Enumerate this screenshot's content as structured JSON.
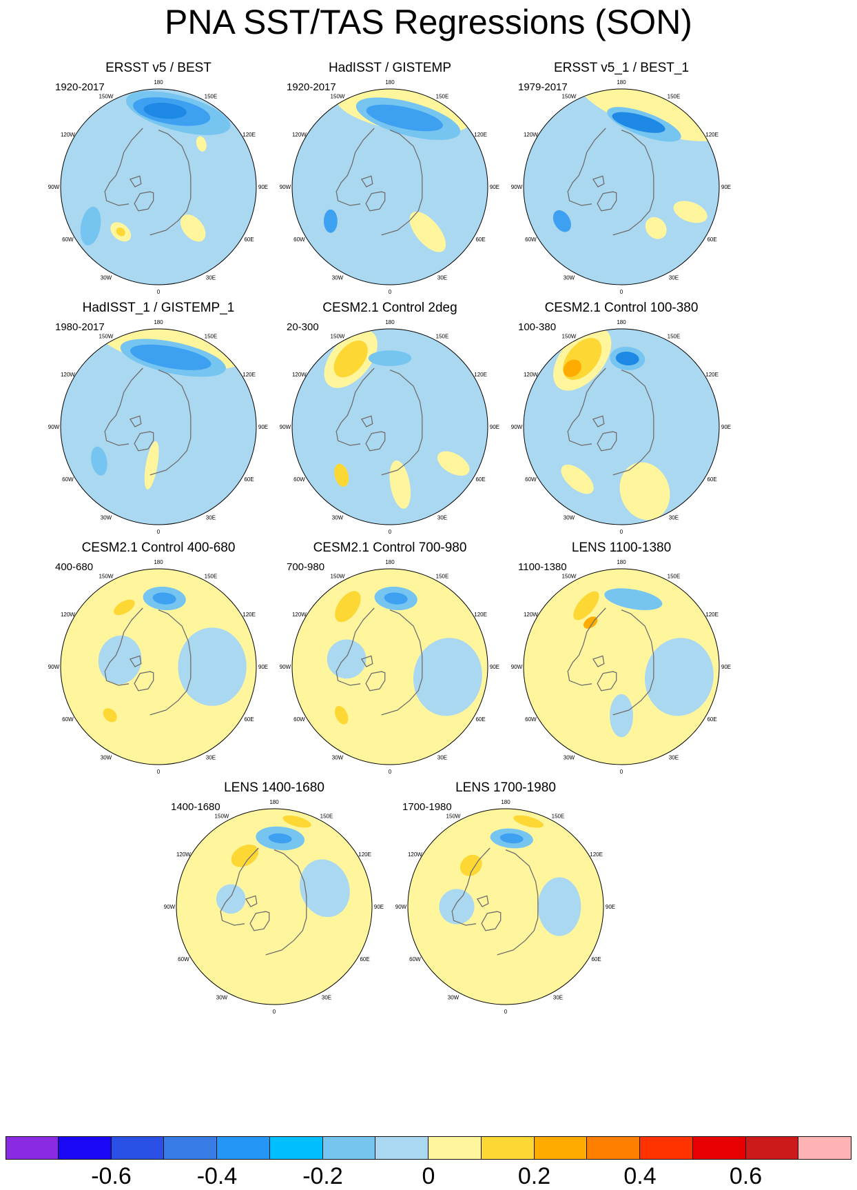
{
  "title": "PNA SST/TAS Regressions (SON)",
  "longitude_labels": [
    "180",
    "150E",
    "120E",
    "90E",
    "60E",
    "30E",
    "0",
    "30W",
    "60W",
    "90W",
    "120W",
    "150W"
  ],
  "palette": {
    "ocean_base": "#aad8f0",
    "land_outline": "#6e6e6e",
    "coast_white": "#ffffff"
  },
  "panels": [
    {
      "title": "ERSST v5 / BEST",
      "period": "1920-2017",
      "base": "#aad8f0",
      "blobs": [
        {
          "lon": 165,
          "r": 0.78,
          "sx": 0.55,
          "sy": 0.18,
          "rot": 0,
          "color": "#76c5f0"
        },
        {
          "lon": 170,
          "r": 0.78,
          "sx": 0.4,
          "sy": 0.13,
          "rot": 0,
          "color": "#3da0f0"
        },
        {
          "lon": 175,
          "r": 0.78,
          "sx": 0.22,
          "sy": 0.08,
          "rot": 0,
          "color": "#1e88e5"
        },
        {
          "lon": 135,
          "r": 0.62,
          "sx": 0.08,
          "sy": 0.05,
          "rot": 30,
          "color": "#fff59d"
        },
        {
          "lon": -40,
          "r": 0.6,
          "sx": 0.12,
          "sy": 0.08,
          "rot": 0,
          "color": "#fff59d"
        },
        {
          "lon": -40,
          "r": 0.6,
          "sx": 0.05,
          "sy": 0.04,
          "rot": 0,
          "color": "#fdd835"
        },
        {
          "lon": -60,
          "r": 0.8,
          "sx": 0.2,
          "sy": 0.1,
          "rot": 40,
          "color": "#76c5f0"
        },
        {
          "lon": 40,
          "r": 0.55,
          "sx": 0.1,
          "sy": 0.16,
          "rot": 0,
          "color": "#fff59d"
        }
      ]
    },
    {
      "title": "HadISST / GISTEMP",
      "period": "1920-2017",
      "base": "#aad8f0",
      "blobs": [
        {
          "lon": 170,
          "r": 0.8,
          "sx": 0.7,
          "sy": 0.22,
          "rot": 0,
          "color": "#fff59d"
        },
        {
          "lon": 165,
          "r": 0.72,
          "sx": 0.55,
          "sy": 0.17,
          "rot": 0,
          "color": "#76c5f0"
        },
        {
          "lon": 168,
          "r": 0.72,
          "sx": 0.4,
          "sy": 0.11,
          "rot": 0,
          "color": "#3da0f0"
        },
        {
          "lon": 40,
          "r": 0.6,
          "sx": 0.12,
          "sy": 0.25,
          "rot": 0,
          "color": "#fff59d"
        },
        {
          "lon": -60,
          "r": 0.7,
          "sx": 0.12,
          "sy": 0.07,
          "rot": 30,
          "color": "#3da0f0"
        }
      ]
    },
    {
      "title": "ERSST v5_1 / BEST_1",
      "period": "1979-2017",
      "base": "#aad8f0",
      "blobs": [
        {
          "lon": 160,
          "r": 0.88,
          "sx": 0.8,
          "sy": 0.25,
          "rot": 0,
          "color": "#fff59d"
        },
        {
          "lon": 160,
          "r": 0.68,
          "sx": 0.4,
          "sy": 0.12,
          "rot": 0,
          "color": "#76c5f0"
        },
        {
          "lon": 165,
          "r": 0.68,
          "sx": 0.28,
          "sy": 0.08,
          "rot": 0,
          "color": "#1e88e5"
        },
        {
          "lon": -60,
          "r": 0.7,
          "sx": 0.12,
          "sy": 0.08,
          "rot": 0,
          "color": "#3da0f0"
        },
        {
          "lon": 40,
          "r": 0.55,
          "sx": 0.1,
          "sy": 0.12,
          "rot": 0,
          "color": "#fff59d"
        },
        {
          "lon": 70,
          "r": 0.75,
          "sx": 0.1,
          "sy": 0.18,
          "rot": 0,
          "color": "#fff59d"
        }
      ]
    },
    {
      "title": "HadISST_1 / GISTEMP_1",
      "period": "1980-2017",
      "base": "#aad8f0",
      "blobs": [
        {
          "lon": 170,
          "r": 0.88,
          "sx": 0.8,
          "sy": 0.25,
          "rot": 0,
          "color": "#fff59d"
        },
        {
          "lon": 168,
          "r": 0.72,
          "sx": 0.55,
          "sy": 0.16,
          "rot": 0,
          "color": "#76c5f0"
        },
        {
          "lon": 170,
          "r": 0.72,
          "sx": 0.42,
          "sy": 0.11,
          "rot": 0,
          "color": "#3da0f0"
        },
        {
          "lon": -10,
          "r": 0.4,
          "sx": 0.06,
          "sy": 0.25,
          "rot": 0,
          "color": "#fff59d"
        },
        {
          "lon": -60,
          "r": 0.7,
          "sx": 0.15,
          "sy": 0.08,
          "rot": 20,
          "color": "#76c5f0"
        }
      ]
    },
    {
      "title": "CESM2.1 Control 2deg",
      "period": "20-300",
      "base": "#aad8f0",
      "blobs": [
        {
          "lon": -150,
          "r": 0.8,
          "sx": 0.35,
          "sy": 0.2,
          "rot": -20,
          "color": "#fff59d"
        },
        {
          "lon": -150,
          "r": 0.8,
          "sx": 0.22,
          "sy": 0.13,
          "rot": -20,
          "color": "#fdd835"
        },
        {
          "lon": 180,
          "r": 0.7,
          "sx": 0.22,
          "sy": 0.08,
          "rot": 0,
          "color": "#76c5f0"
        },
        {
          "lon": -45,
          "r": 0.7,
          "sx": 0.12,
          "sy": 0.07,
          "rot": 30,
          "color": "#fdd835"
        },
        {
          "lon": 10,
          "r": 0.6,
          "sx": 0.1,
          "sy": 0.25,
          "rot": 0,
          "color": "#fff59d"
        },
        {
          "lon": 60,
          "r": 0.75,
          "sx": 0.1,
          "sy": 0.18,
          "rot": 0,
          "color": "#fff59d"
        }
      ]
    },
    {
      "title": "CESM2.1 Control 100-380",
      "period": "100-380",
      "base": "#aad8f0",
      "blobs": [
        {
          "lon": -150,
          "r": 0.8,
          "sx": 0.38,
          "sy": 0.22,
          "rot": -20,
          "color": "#fff59d"
        },
        {
          "lon": -150,
          "r": 0.8,
          "sx": 0.25,
          "sy": 0.15,
          "rot": -20,
          "color": "#fdd835"
        },
        {
          "lon": -140,
          "r": 0.78,
          "sx": 0.1,
          "sy": 0.08,
          "rot": 0,
          "color": "#ffab00"
        },
        {
          "lon": 175,
          "r": 0.7,
          "sx": 0.18,
          "sy": 0.12,
          "rot": 0,
          "color": "#76c5f0"
        },
        {
          "lon": 175,
          "r": 0.7,
          "sx": 0.12,
          "sy": 0.07,
          "rot": 0,
          "color": "#1e88e5"
        },
        {
          "lon": 20,
          "r": 0.7,
          "sx": 0.25,
          "sy": 0.3,
          "rot": 0,
          "color": "#fff59d"
        },
        {
          "lon": -40,
          "r": 0.7,
          "sx": 0.2,
          "sy": 0.1,
          "rot": 0,
          "color": "#fff59d"
        }
      ]
    },
    {
      "title": "CESM2.1 Control 400-680",
      "period": "400-680",
      "base": "#fff59d",
      "blobs": [
        {
          "lon": 90,
          "r": 0.55,
          "sx": 0.4,
          "sy": 0.35,
          "rot": 0,
          "color": "#aad8f0"
        },
        {
          "lon": -100,
          "r": 0.4,
          "sx": 0.25,
          "sy": 0.22,
          "rot": 0,
          "color": "#aad8f0"
        },
        {
          "lon": 175,
          "r": 0.7,
          "sx": 0.22,
          "sy": 0.12,
          "rot": 0,
          "color": "#76c5f0"
        },
        {
          "lon": 175,
          "r": 0.7,
          "sx": 0.12,
          "sy": 0.06,
          "rot": 0,
          "color": "#3da0f0"
        },
        {
          "lon": -150,
          "r": 0.7,
          "sx": 0.12,
          "sy": 0.06,
          "rot": 0,
          "color": "#fdd835"
        },
        {
          "lon": -45,
          "r": 0.7,
          "sx": 0.08,
          "sy": 0.06,
          "rot": 0,
          "color": "#fdd835"
        }
      ]
    },
    {
      "title": "CESM2.1 Control 700-980",
      "period": "700-980",
      "base": "#fff59d",
      "blobs": [
        {
          "lon": 80,
          "r": 0.6,
          "sx": 0.4,
          "sy": 0.35,
          "rot": 0,
          "color": "#aad8f0"
        },
        {
          "lon": -100,
          "r": 0.45,
          "sx": 0.2,
          "sy": 0.2,
          "rot": 0,
          "color": "#aad8f0"
        },
        {
          "lon": 175,
          "r": 0.7,
          "sx": 0.22,
          "sy": 0.12,
          "rot": 0,
          "color": "#76c5f0"
        },
        {
          "lon": 175,
          "r": 0.7,
          "sx": 0.12,
          "sy": 0.06,
          "rot": 0,
          "color": "#3da0f0"
        },
        {
          "lon": -145,
          "r": 0.75,
          "sx": 0.18,
          "sy": 0.1,
          "rot": -20,
          "color": "#fdd835"
        },
        {
          "lon": -45,
          "r": 0.7,
          "sx": 0.1,
          "sy": 0.06,
          "rot": 20,
          "color": "#fdd835"
        }
      ]
    },
    {
      "title": "LENS 1100-1380",
      "period": "1100-1380",
      "base": "#fff59d",
      "blobs": [
        {
          "lon": 80,
          "r": 0.6,
          "sx": 0.4,
          "sy": 0.35,
          "rot": 0,
          "color": "#aad8f0"
        },
        {
          "lon": 0,
          "r": 0.5,
          "sx": 0.12,
          "sy": 0.22,
          "rot": 0,
          "color": "#aad8f0"
        },
        {
          "lon": 170,
          "r": 0.7,
          "sx": 0.3,
          "sy": 0.1,
          "rot": 0,
          "color": "#76c5f0"
        },
        {
          "lon": -150,
          "r": 0.72,
          "sx": 0.18,
          "sy": 0.08,
          "rot": -20,
          "color": "#fdd835"
        },
        {
          "lon": -145,
          "r": 0.55,
          "sx": 0.08,
          "sy": 0.05,
          "rot": 0,
          "color": "#ffab00"
        }
      ]
    },
    {
      "title": "LENS 1400-1680",
      "period": "1400-1680",
      "base": "#fff59d",
      "blobs": [
        {
          "lon": 110,
          "r": 0.55,
          "sx": 0.3,
          "sy": 0.25,
          "rot": 0,
          "color": "#aad8f0"
        },
        {
          "lon": -100,
          "r": 0.45,
          "sx": 0.15,
          "sy": 0.15,
          "rot": 0,
          "color": "#aad8f0"
        },
        {
          "lon": 175,
          "r": 0.7,
          "sx": 0.25,
          "sy": 0.12,
          "rot": 0,
          "color": "#76c5f0"
        },
        {
          "lon": 175,
          "r": 0.7,
          "sx": 0.12,
          "sy": 0.05,
          "rot": 0,
          "color": "#3da0f0"
        },
        {
          "lon": -150,
          "r": 0.6,
          "sx": 0.15,
          "sy": 0.1,
          "rot": 0,
          "color": "#fdd835"
        },
        {
          "lon": 165,
          "r": 0.9,
          "sx": 0.15,
          "sy": 0.05,
          "rot": 0,
          "color": "#fdd835"
        }
      ]
    },
    {
      "title": "LENS 1700-1980",
      "period": "1700-1980",
      "base": "#fff59d",
      "blobs": [
        {
          "lon": 90,
          "r": 0.55,
          "sx": 0.3,
          "sy": 0.22,
          "rot": 0,
          "color": "#aad8f0"
        },
        {
          "lon": -90,
          "r": 0.5,
          "sx": 0.18,
          "sy": 0.18,
          "rot": 0,
          "color": "#aad8f0"
        },
        {
          "lon": 175,
          "r": 0.7,
          "sx": 0.22,
          "sy": 0.1,
          "rot": 0,
          "color": "#76c5f0"
        },
        {
          "lon": 175,
          "r": 0.7,
          "sx": 0.12,
          "sy": 0.05,
          "rot": 0,
          "color": "#3da0f0"
        },
        {
          "lon": 165,
          "r": 0.9,
          "sx": 0.16,
          "sy": 0.05,
          "rot": 0,
          "color": "#fdd835"
        },
        {
          "lon": -140,
          "r": 0.55,
          "sx": 0.12,
          "sy": 0.1,
          "rot": 0,
          "color": "#fdd835"
        }
      ]
    }
  ],
  "colorbar": {
    "colors": [
      "#8a2be2",
      "#1a08f5",
      "#2b50e6",
      "#3a7ce6",
      "#2596f5",
      "#00bfff",
      "#76c5f0",
      "#aad8f0",
      "#fff59d",
      "#fdd835",
      "#ffab00",
      "#ff7f00",
      "#ff3300",
      "#e60000",
      "#cc1a1a",
      "#ffb3b3"
    ],
    "tick_labels": [
      "-0.6",
      "-0.4",
      "-0.2",
      "0",
      "0.2",
      "0.4",
      "0.6"
    ]
  }
}
